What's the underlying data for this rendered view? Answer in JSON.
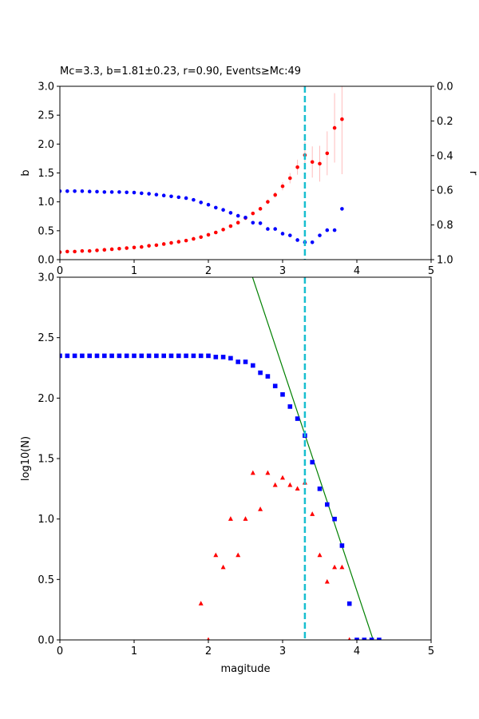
{
  "chart_data": [
    {
      "type": "scatter",
      "title": "Mc=3.3, b=1.81±0.23, r=0.90, Events≥Mc:49",
      "xlabel": "",
      "ylabel": "b",
      "y2label": "r",
      "xlim": [
        0,
        5
      ],
      "ylim": [
        0,
        3
      ],
      "y2lim": [
        1.0,
        0.0
      ],
      "y2_inverted": true,
      "xticks": [
        "0",
        "1",
        "2",
        "3",
        "4",
        "5"
      ],
      "yticks": [
        "0.0",
        "0.5",
        "1.0",
        "1.5",
        "2.0",
        "2.5",
        "3.0"
      ],
      "y2ticks": [
        "0.0",
        "0.2",
        "0.4",
        "0.6",
        "0.8",
        "1.0"
      ],
      "grid": false,
      "mc_line": {
        "x": 3.3,
        "color": "#17becf",
        "style": "dashed"
      },
      "series": [
        {
          "color": "#ff0000",
          "marker": "circle",
          "axis": "left",
          "x": [
            0.0,
            0.1,
            0.2,
            0.3,
            0.4,
            0.5,
            0.6,
            0.7,
            0.8,
            0.9,
            1.0,
            1.1,
            1.2,
            1.3,
            1.4,
            1.5,
            1.6,
            1.7,
            1.8,
            1.9,
            2.0,
            2.1,
            2.2,
            2.3,
            2.4,
            2.5,
            2.6,
            2.7,
            2.8,
            2.9,
            3.0,
            3.1,
            3.2,
            3.3,
            3.4,
            3.5,
            3.6,
            3.7,
            3.8
          ],
          "y": [
            0.13,
            0.14,
            0.14,
            0.15,
            0.15,
            0.16,
            0.17,
            0.18,
            0.19,
            0.2,
            0.21,
            0.22,
            0.24,
            0.25,
            0.27,
            0.29,
            0.31,
            0.33,
            0.36,
            0.39,
            0.43,
            0.47,
            0.52,
            0.58,
            0.64,
            0.72,
            0.8,
            0.88,
            1.0,
            1.12,
            1.27,
            1.41,
            1.6,
            1.81,
            1.69,
            1.66,
            1.84,
            2.28,
            2.43
          ],
          "yerr": [
            0.01,
            0.01,
            0.01,
            0.01,
            0.01,
            0.01,
            0.01,
            0.01,
            0.01,
            0.01,
            0.01,
            0.01,
            0.01,
            0.01,
            0.01,
            0.01,
            0.01,
            0.01,
            0.01,
            0.01,
            0.01,
            0.01,
            0.02,
            0.02,
            0.02,
            0.02,
            0.03,
            0.03,
            0.04,
            0.05,
            0.07,
            0.09,
            0.13,
            0.23,
            0.27,
            0.31,
            0.38,
            0.6,
            0.95
          ]
        },
        {
          "color": "#0000ff",
          "marker": "circle",
          "axis": "right",
          "x": [
            0.0,
            0.1,
            0.2,
            0.3,
            0.4,
            0.5,
            0.6,
            0.7,
            0.8,
            0.9,
            1.0,
            1.1,
            1.2,
            1.3,
            1.4,
            1.5,
            1.6,
            1.7,
            1.8,
            1.9,
            2.0,
            2.1,
            2.2,
            2.3,
            2.4,
            2.5,
            2.6,
            2.7,
            2.8,
            2.9,
            3.0,
            3.1,
            3.2,
            3.3,
            3.4,
            3.5,
            3.6,
            3.7,
            3.8
          ],
          "y": [
            0.605,
            0.605,
            0.605,
            0.605,
            0.607,
            0.608,
            0.61,
            0.61,
            0.61,
            0.612,
            0.613,
            0.617,
            0.62,
            0.625,
            0.63,
            0.635,
            0.64,
            0.645,
            0.655,
            0.67,
            0.683,
            0.7,
            0.713,
            0.73,
            0.747,
            0.757,
            0.787,
            0.79,
            0.823,
            0.823,
            0.85,
            0.86,
            0.887,
            0.9,
            0.9,
            0.86,
            0.83,
            0.83,
            0.707
          ]
        }
      ]
    },
    {
      "type": "scatter",
      "title": "",
      "xlabel": "magitude",
      "ylabel": "log10(N)",
      "xlim": [
        0,
        5
      ],
      "ylim": [
        0,
        3
      ],
      "xticks": [
        "0",
        "1",
        "2",
        "3",
        "4",
        "5"
      ],
      "yticks": [
        "0.0",
        "0.5",
        "1.0",
        "1.5",
        "2.0",
        "2.5",
        "3.0"
      ],
      "grid": false,
      "mc_line": {
        "x": 3.3,
        "color": "#17becf",
        "style": "dashed"
      },
      "fit_line": {
        "color": "#008000",
        "x": [
          2.595,
          4.22
        ],
        "y": [
          3.0,
          0.0
        ]
      },
      "series": [
        {
          "color": "#0000ff",
          "marker": "square",
          "x": [
            0.0,
            0.1,
            0.2,
            0.3,
            0.4,
            0.5,
            0.6,
            0.7,
            0.8,
            0.9,
            1.0,
            1.1,
            1.2,
            1.3,
            1.4,
            1.5,
            1.6,
            1.7,
            1.8,
            1.9,
            2.0,
            2.1,
            2.2,
            2.3,
            2.4,
            2.5,
            2.6,
            2.7,
            2.8,
            2.9,
            3.0,
            3.1,
            3.2,
            3.3,
            3.4,
            3.5,
            3.6,
            3.7,
            3.8,
            3.9,
            4.0,
            4.1,
            4.2,
            4.3
          ],
          "y": [
            2.35,
            2.35,
            2.35,
            2.35,
            2.35,
            2.35,
            2.35,
            2.35,
            2.35,
            2.35,
            2.35,
            2.35,
            2.35,
            2.35,
            2.35,
            2.35,
            2.35,
            2.35,
            2.35,
            2.35,
            2.35,
            2.34,
            2.34,
            2.33,
            2.3,
            2.3,
            2.27,
            2.21,
            2.18,
            2.1,
            2.03,
            1.93,
            1.83,
            1.69,
            1.47,
            1.25,
            1.12,
            1.0,
            0.78,
            0.3,
            0.0,
            0.0,
            0.0,
            0.0
          ]
        },
        {
          "color": "#ff0000",
          "marker": "triangle",
          "x": [
            1.9,
            2.0,
            2.1,
            2.2,
            2.3,
            2.4,
            2.5,
            2.6,
            2.7,
            2.8,
            2.9,
            3.0,
            3.1,
            3.2,
            3.3,
            3.4,
            3.5,
            3.6,
            3.7,
            3.8,
            3.9
          ],
          "y": [
            0.3,
            0.0,
            0.7,
            0.6,
            1.0,
            0.7,
            1.0,
            1.38,
            1.08,
            1.38,
            1.28,
            1.34,
            1.28,
            1.25,
            1.3,
            1.04,
            0.7,
            0.48,
            0.6,
            0.6,
            0.0
          ]
        }
      ]
    }
  ]
}
